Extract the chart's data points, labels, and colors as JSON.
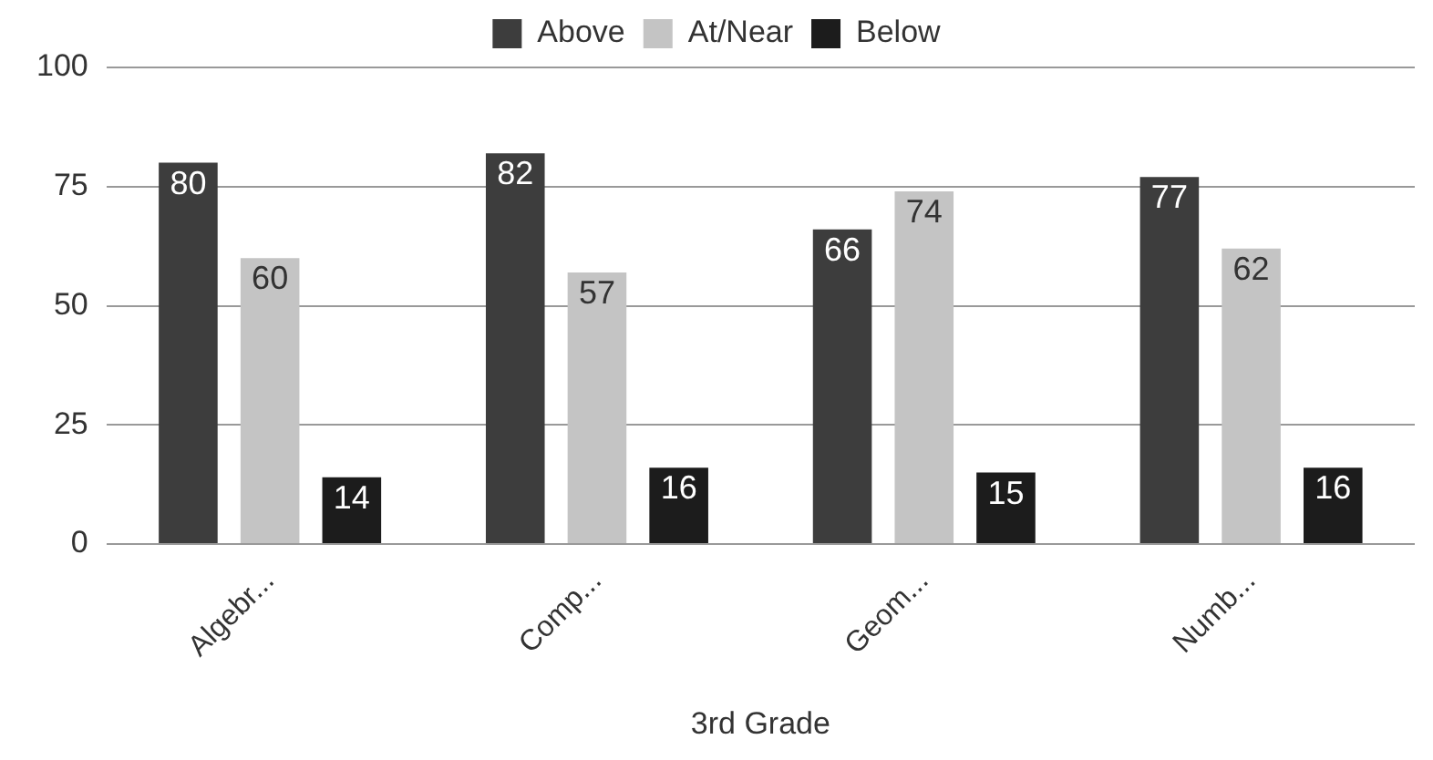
{
  "chart_data": {
    "type": "bar",
    "xlabel": "3rd Grade",
    "categories": [
      "Algebr...",
      "Comp...",
      "Geom...",
      "Numb..."
    ],
    "series": [
      {
        "name": "Above",
        "color": "#3d3d3d",
        "values": [
          80,
          82,
          66,
          77
        ]
      },
      {
        "name": "At/Near",
        "color": "#c4c4c4",
        "values": [
          60,
          57,
          74,
          62
        ]
      },
      {
        "name": "Below",
        "color": "#1c1c1c",
        "values": [
          14,
          16,
          15,
          16
        ]
      }
    ],
    "ylim": [
      0,
      100
    ],
    "yticks": [
      0,
      25,
      50,
      75,
      100
    ],
    "grid": "y",
    "legend": "top",
    "data_labels": true
  }
}
